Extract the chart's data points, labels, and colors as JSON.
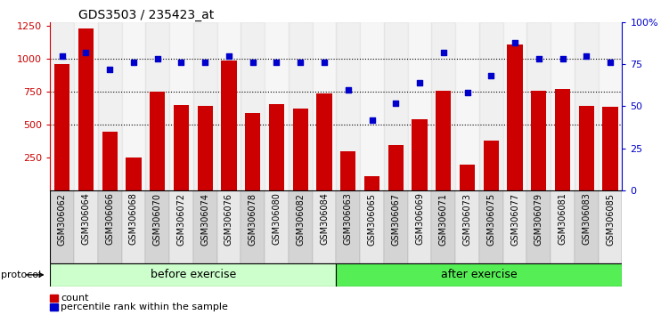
{
  "title": "GDS3503 / 235423_at",
  "samples": [
    "GSM306062",
    "GSM306064",
    "GSM306066",
    "GSM306068",
    "GSM306070",
    "GSM306072",
    "GSM306074",
    "GSM306076",
    "GSM306078",
    "GSM306080",
    "GSM306082",
    "GSM306084",
    "GSM306063",
    "GSM306065",
    "GSM306067",
    "GSM306069",
    "GSM306071",
    "GSM306073",
    "GSM306075",
    "GSM306077",
    "GSM306079",
    "GSM306081",
    "GSM306083",
    "GSM306085"
  ],
  "counts": [
    960,
    1230,
    450,
    250,
    750,
    650,
    640,
    990,
    590,
    660,
    620,
    740,
    300,
    110,
    345,
    545,
    755,
    200,
    380,
    1110,
    760,
    770,
    640,
    635
  ],
  "percentile": [
    80,
    82,
    72,
    76,
    78,
    76,
    76,
    80,
    76,
    76,
    76,
    76,
    60,
    42,
    52,
    64,
    82,
    58,
    68,
    88,
    78,
    78,
    80,
    76
  ],
  "before_count": 12,
  "after_count": 12,
  "bar_color": "#cc0000",
  "dot_color": "#0000cc",
  "ylim_left": [
    0,
    1280
  ],
  "ylim_right": [
    0,
    100
  ],
  "yticks_left": [
    250,
    500,
    750,
    1000,
    1250
  ],
  "yticks_right": [
    0,
    25,
    50,
    75,
    100
  ],
  "dotted_lines": [
    500,
    750,
    1000
  ],
  "before_color": "#ccffcc",
  "after_color": "#55ee55",
  "protocol_label": "protocol",
  "before_label": "before exercise",
  "after_label": "after exercise",
  "legend_count_label": "count",
  "legend_pct_label": "percentile rank within the sample",
  "title_fontsize": 10,
  "tick_fontsize": 7,
  "bar_color_left": "#cc0000",
  "dot_color_right": "#0000cc",
  "bg_color_odd": "#d4d4d4",
  "bg_color_even": "#e8e8e8"
}
